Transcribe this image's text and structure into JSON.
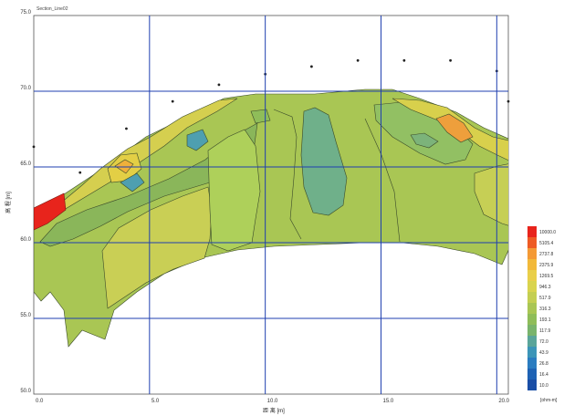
{
  "chart_data": {
    "type": "heatmap",
    "title": "Section_Line02",
    "xlabel": "距 离 [m]",
    "ylabel": "高 程 [m]",
    "xlim": [
      0,
      20.5
    ],
    "ylim": [
      50,
      75
    ],
    "x_ticks": [
      "0.0",
      "5.0",
      "10.0",
      "15.0",
      "20.0"
    ],
    "y_ticks": [
      "50.0",
      "55.0",
      "60.0",
      "65.0",
      "70.0",
      "75.0"
    ],
    "grid": true,
    "legend": {
      "position": "right",
      "unit": "[ohm-m]",
      "levels": [
        "10000.0",
        "5105.4",
        "2737.8",
        "2375.9",
        "1269.5",
        "946.3",
        "517.9",
        "316.3",
        "193.1",
        "117.9",
        "72.0",
        "43.9",
        "26.8",
        "16.4",
        "10.0"
      ],
      "colors": [
        "#e8241c",
        "#ee5b24",
        "#f49a36",
        "#f2b93a",
        "#e9cf4a",
        "#d9d44e",
        "#c4cf52",
        "#a9c654",
        "#8fbd59",
        "#79b46c",
        "#5aa59a",
        "#3c95b8",
        "#2a7cc0",
        "#1e62b4",
        "#1a4ea6"
      ]
    },
    "profile_surface": [
      [
        0.0,
        66.3
      ],
      [
        2.0,
        64.6
      ],
      [
        4.0,
        67.5
      ],
      [
        6.0,
        69.3
      ],
      [
        8.0,
        70.4
      ],
      [
        10.0,
        71.1
      ],
      [
        12.0,
        71.6
      ],
      [
        14.0,
        72.0
      ],
      [
        16.0,
        72.0
      ],
      [
        18.0,
        72.0
      ],
      [
        20.0,
        71.3
      ],
      [
        20.5,
        69.3
      ]
    ]
  }
}
